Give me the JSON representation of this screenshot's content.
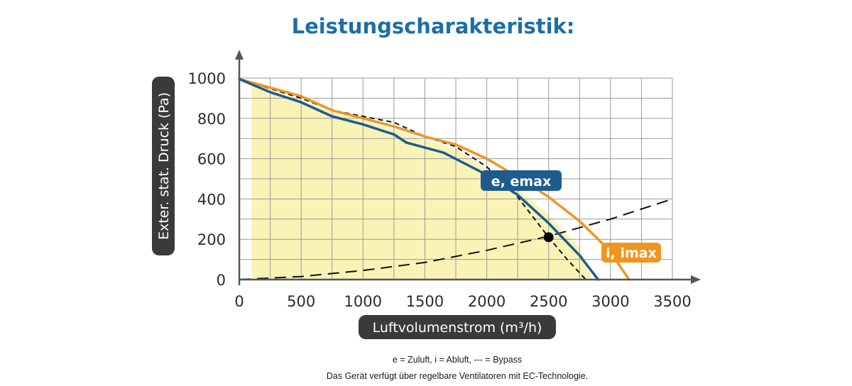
{
  "colors": {
    "title": "#1b6fa8",
    "supply": "#1e5c8f",
    "extract": "#f0961e",
    "bypass": "#111111",
    "area": "#faf3b6",
    "grid": "#9a9a9a",
    "pill": "#3a3a3a"
  },
  "chart_data": {
    "type": "line",
    "title": "Leistungscharakteristik:",
    "xlabel": "Luftvolumenstrom (m³/h)",
    "ylabel": "Exter. stat. Druck (Pa)",
    "xlim": [
      0,
      3500
    ],
    "ylim": [
      0,
      1000
    ],
    "x_ticks": [
      "0",
      "500",
      "1000",
      "1500",
      "2000",
      "2500",
      "3000",
      "3500"
    ],
    "y_ticks": [
      "0",
      "200",
      "400",
      "600",
      "800",
      "1000"
    ],
    "grid": true,
    "series": [
      {
        "name": "e, emax",
        "color": "#1e5c8f",
        "style": "solid",
        "x": [
          0,
          250,
          500,
          750,
          1000,
          1250,
          1350,
          1650,
          2000,
          2250,
          2500,
          2750,
          2900
        ],
        "y": [
          995,
          930,
          880,
          810,
          770,
          720,
          680,
          630,
          520,
          420,
          280,
          120,
          0
        ]
      },
      {
        "name": "i, imax",
        "color": "#f0961e",
        "style": "solid",
        "x": [
          0,
          500,
          750,
          1000,
          1250,
          1500,
          1750,
          2000,
          2250,
          2500,
          2750,
          2950,
          3050,
          3150
        ],
        "y": [
          995,
          910,
          840,
          800,
          760,
          710,
          670,
          600,
          510,
          410,
          290,
          170,
          90,
          0
        ]
      },
      {
        "name": "",
        "color": "#111111",
        "style": "short-dash",
        "x": [
          0,
          500,
          750,
          1000,
          1250,
          1500,
          1750,
          2000,
          2250,
          2500,
          2650,
          2800
        ],
        "y": [
          995,
          900,
          840,
          810,
          780,
          710,
          660,
          560,
          410,
          210,
          100,
          0
        ]
      },
      {
        "name": "",
        "color": "#111111",
        "style": "long-dash",
        "x": [
          0,
          500,
          1000,
          1500,
          2000,
          2500,
          3000,
          3500
        ],
        "y": [
          0,
          15,
          45,
          85,
          145,
          215,
          300,
          400
        ]
      }
    ],
    "marker": {
      "x": 2500,
      "y": 210
    },
    "area": {
      "x": [
        100,
        250,
        500,
        750,
        1000,
        1250,
        1500,
        1750,
        2000,
        2250,
        2500,
        2750,
        2850
      ],
      "y": [
        985,
        940,
        890,
        830,
        790,
        745,
        690,
        650,
        550,
        450,
        320,
        160,
        0
      ]
    }
  },
  "footnotes": {
    "legend": "e = Zuluft, i = Abluft, --- = Bypass",
    "note": "Das Gerät verfügt über regelbare Ventilatoren mit EC-Technologie."
  }
}
